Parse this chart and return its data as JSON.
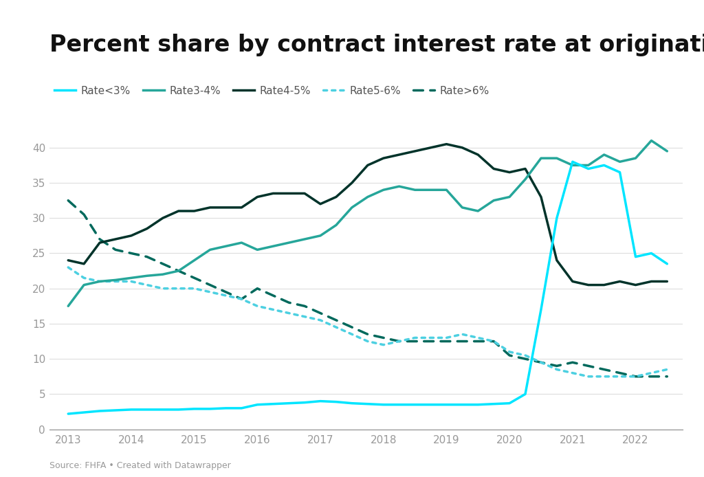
{
  "title": "Percent share by contract interest rate at origination",
  "source_text": "Source: FHFA • Created with Datawrapper",
  "background_color": "#ffffff",
  "years": [
    2013.0,
    2013.25,
    2013.5,
    2013.75,
    2014.0,
    2014.25,
    2014.5,
    2014.75,
    2015.0,
    2015.25,
    2015.5,
    2015.75,
    2016.0,
    2016.25,
    2016.5,
    2016.75,
    2017.0,
    2017.25,
    2017.5,
    2017.75,
    2018.0,
    2018.25,
    2018.5,
    2018.75,
    2019.0,
    2019.25,
    2019.5,
    2019.75,
    2020.0,
    2020.25,
    2020.5,
    2020.75,
    2021.0,
    2021.25,
    2021.5,
    2021.75,
    2022.0,
    2022.25,
    2022.5
  ],
  "rate_lt3": [
    2.2,
    2.4,
    2.6,
    2.7,
    2.8,
    2.8,
    2.8,
    2.8,
    2.9,
    2.9,
    3.0,
    3.0,
    3.5,
    3.6,
    3.7,
    3.8,
    4.0,
    3.9,
    3.7,
    3.6,
    3.5,
    3.5,
    3.5,
    3.5,
    3.5,
    3.5,
    3.5,
    3.6,
    3.7,
    5.0,
    17.0,
    30.0,
    38.0,
    37.0,
    37.5,
    36.5,
    24.5,
    25.0,
    23.5
  ],
  "rate_3_4": [
    17.5,
    20.5,
    21.0,
    21.2,
    21.5,
    21.8,
    22.0,
    22.5,
    24.0,
    25.5,
    26.0,
    26.5,
    25.5,
    26.0,
    26.5,
    27.0,
    27.5,
    29.0,
    31.5,
    33.0,
    34.0,
    34.5,
    34.0,
    34.0,
    34.0,
    31.5,
    31.0,
    32.5,
    33.0,
    35.5,
    38.5,
    38.5,
    37.5,
    37.5,
    39.0,
    38.0,
    38.5,
    41.0,
    39.5
  ],
  "rate_4_5": [
    24.0,
    23.5,
    26.5,
    27.0,
    27.5,
    28.5,
    30.0,
    31.0,
    31.0,
    31.5,
    31.5,
    31.5,
    33.0,
    33.5,
    33.5,
    33.5,
    32.0,
    33.0,
    35.0,
    37.5,
    38.5,
    39.0,
    39.5,
    40.0,
    40.5,
    40.0,
    39.0,
    37.0,
    36.5,
    37.0,
    33.0,
    24.0,
    21.0,
    20.5,
    20.5,
    21.0,
    20.5,
    21.0,
    21.0
  ],
  "rate_5_6": [
    23.0,
    21.5,
    21.0,
    21.0,
    21.0,
    20.5,
    20.0,
    20.0,
    20.0,
    19.5,
    19.0,
    18.5,
    17.5,
    17.0,
    16.5,
    16.0,
    15.5,
    14.5,
    13.5,
    12.5,
    12.0,
    12.5,
    13.0,
    13.0,
    13.0,
    13.5,
    13.0,
    12.5,
    11.0,
    10.5,
    9.5,
    8.5,
    8.0,
    7.5,
    7.5,
    7.5,
    7.5,
    8.0,
    8.5
  ],
  "rate_gt6": [
    32.5,
    30.5,
    27.0,
    25.5,
    25.0,
    24.5,
    23.5,
    22.5,
    21.5,
    20.5,
    19.5,
    18.5,
    20.0,
    19.0,
    18.0,
    17.5,
    16.5,
    15.5,
    14.5,
    13.5,
    13.0,
    12.5,
    12.5,
    12.5,
    12.5,
    12.5,
    12.5,
    12.5,
    10.5,
    10.0,
    9.5,
    9.0,
    9.5,
    9.0,
    8.5,
    8.0,
    7.5,
    7.5,
    7.5
  ],
  "color_lt3": "#00e5ff",
  "color_3_4": "#26a69a",
  "color_4_5": "#00332a",
  "color_5_6": "#4dd0e1",
  "color_gt6": "#00695c",
  "ylim": [
    0,
    42
  ],
  "yticks": [
    0,
    5,
    10,
    15,
    20,
    25,
    30,
    35,
    40
  ],
  "xticks": [
    2013,
    2014,
    2015,
    2016,
    2017,
    2018,
    2019,
    2020,
    2021,
    2022
  ],
  "grid_color": "#dddddd",
  "tick_color": "#999999",
  "title_fontsize": 24,
  "legend_fontsize": 11,
  "axis_fontsize": 11
}
